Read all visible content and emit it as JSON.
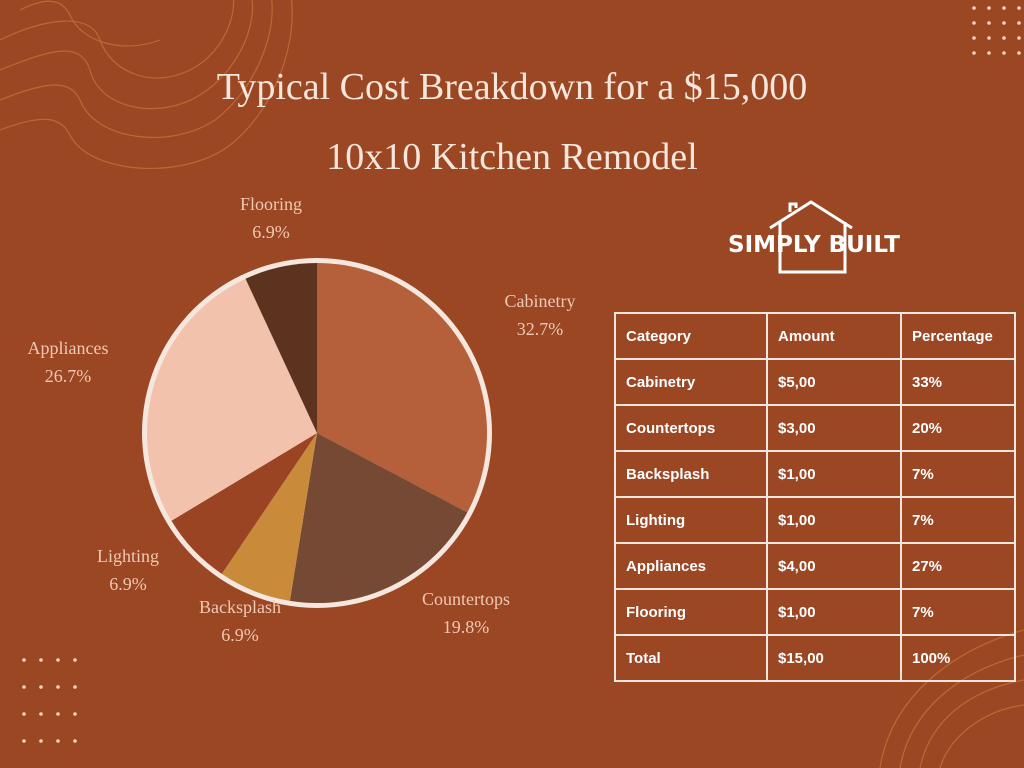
{
  "chart_data": {
    "type": "pie",
    "title": "Typical Cost Breakdown for a $15,000\n10x10 Kitchen Remodel",
    "categories": [
      "Cabinetry",
      "Countertops",
      "Backsplash",
      "Lighting",
      "Appliances",
      "Flooring"
    ],
    "values": [
      32.7,
      19.8,
      6.9,
      6.9,
      26.7,
      6.9
    ],
    "value_labels": [
      "32.7%",
      "19.8%",
      "6.9%",
      "6.9%",
      "26.7%",
      "6.9%"
    ],
    "colors": [
      "#b5603a",
      "#754933",
      "#c98a3a",
      "#9a4424",
      "#f3c2ac",
      "#5c331f"
    ]
  },
  "logo": {
    "text": "SIMPLY BUILT"
  },
  "table": {
    "header": [
      "Category",
      "Amount",
      "Percentage"
    ],
    "rows": [
      [
        "Cabinetry",
        "$5,00",
        "33%"
      ],
      [
        "Countertops",
        "$3,00",
        "20%"
      ],
      [
        "Backsplash",
        "$1,00",
        "7%"
      ],
      [
        "Lighting",
        "$1,00",
        "7%"
      ],
      [
        "Appliances",
        "$4,00",
        "27%"
      ],
      [
        "Flooring",
        "$1,00",
        "7%"
      ],
      [
        "Total",
        "$15,00",
        "100%"
      ]
    ]
  }
}
